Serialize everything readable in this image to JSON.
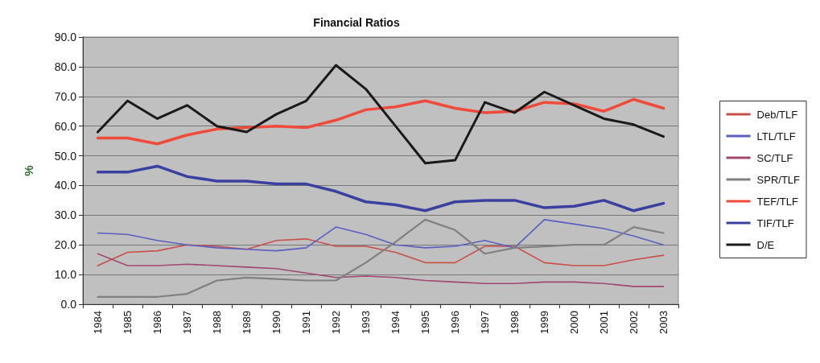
{
  "chart_data": {
    "type": "line",
    "title": "Financial Ratios",
    "ylabel": "%",
    "categories": [
      "1984",
      "1985",
      "1986",
      "1987",
      "1988",
      "1989",
      "1990",
      "1991",
      "1992",
      "1993",
      "1994",
      "1995",
      "1996",
      "1997",
      "1998",
      "1999",
      "2000",
      "2001",
      "2002",
      "2003"
    ],
    "series": [
      {
        "name": "Deb/TLF",
        "color": "#c8504a",
        "values": [
          13,
          17.5,
          18,
          20,
          19.5,
          18.5,
          21.5,
          22,
          19.5,
          19.5,
          17.5,
          14,
          14,
          19.5,
          19.5,
          14,
          13,
          13,
          15,
          16.5
        ]
      },
      {
        "name": "LTL/TLF",
        "color": "#5a5fc0",
        "values": [
          24,
          23.5,
          21.5,
          20,
          19,
          18.5,
          18,
          19,
          26,
          23.5,
          20,
          19,
          19.5,
          21.5,
          19,
          28.5,
          27,
          25.5,
          23,
          20
        ]
      },
      {
        "name": "SC/TLF",
        "color": "#a04870",
        "values": [
          17,
          13,
          13,
          13.5,
          13,
          12.5,
          12,
          10.5,
          9,
          9.5,
          9,
          8,
          7.5,
          7,
          7,
          7.5,
          7.5,
          7,
          6,
          6
        ]
      },
      {
        "name": "SPR/TLF",
        "color": "#808080",
        "values": [
          2.5,
          2.5,
          2.5,
          3.5,
          8,
          9,
          8.5,
          8,
          8,
          14,
          21,
          28.5,
          25,
          17,
          19,
          19.5,
          20,
          20,
          26,
          24
        ]
      },
      {
        "name": "TEF/TLF",
        "color": "#f04a3a",
        "values": [
          56,
          56,
          54,
          57,
          59,
          59.5,
          60,
          59.5,
          62,
          65.5,
          66.5,
          68.5,
          66,
          64.5,
          65,
          68,
          67.5,
          65,
          69,
          66
        ]
      },
      {
        "name": "TIF/TLF",
        "color": "#3a40a0",
        "values": [
          44.5,
          44.5,
          46.5,
          43,
          41.5,
          41.5,
          40.5,
          40.5,
          38,
          34.5,
          33.5,
          31.5,
          34.5,
          35,
          35,
          32.5,
          33,
          35,
          31.5,
          34
        ]
      },
      {
        "name": "D/E",
        "color": "#1a1a1a",
        "values": [
          58,
          68.5,
          62.5,
          67,
          60,
          58,
          64,
          68.5,
          80.5,
          72.5,
          60,
          47.5,
          48.5,
          68,
          64.5,
          71.5,
          67,
          62.5,
          60.5,
          56.5
        ]
      }
    ],
    "ylim": [
      0,
      90
    ],
    "yticks": [
      {
        "value": 0,
        "label": "0.0"
      },
      {
        "value": 10,
        "label": "10.0"
      },
      {
        "value": 20,
        "label": "20.0"
      },
      {
        "value": 30,
        "label": "30.0"
      },
      {
        "value": 40,
        "label": "40.0"
      },
      {
        "value": 50,
        "label": "50.0"
      },
      {
        "value": 60,
        "label": "60.0"
      },
      {
        "value": 70,
        "label": "70.0"
      },
      {
        "value": 80,
        "label": "80.0"
      },
      {
        "value": 90,
        "label": "90.0"
      }
    ],
    "grid": "y",
    "legend": "right",
    "marker": "none",
    "line_style": "solid"
  }
}
